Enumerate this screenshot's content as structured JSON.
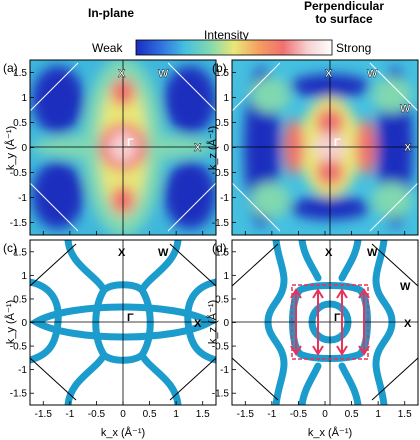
{
  "header": {
    "left_title": "In-plane",
    "right_title_line1": "Perpendicular",
    "right_title_line2": "to surface"
  },
  "colorbar": {
    "title": "Intensity",
    "min_label": "Weak",
    "max_label": "Strong",
    "stops": [
      "#1a2dbe",
      "#2f6fe0",
      "#45c0e0",
      "#80d8b0",
      "#e8e878",
      "#f5a060",
      "#f07070",
      "#f6d0d0",
      "#ffffff"
    ]
  },
  "panels": {
    "a": {
      "tag": "(a)",
      "ylabel": "k_y (Å⁻¹)"
    },
    "b": {
      "tag": "(b)",
      "ylabel": "k_z (Å⁻¹)"
    },
    "c": {
      "tag": "(c)",
      "ylabel": "k_y (Å⁻¹)"
    },
    "d": {
      "tag": "(d)",
      "ylabel": "k_z (Å⁻¹)"
    }
  },
  "symmetry_labels": {
    "gamma": "Γ",
    "x": "X",
    "w": "W"
  },
  "axes": {
    "xlabel": "k_x (Å⁻¹)",
    "ticks": [
      "-1.5",
      "-1",
      "-0.5",
      "0",
      "0.5",
      "1",
      "1.5"
    ],
    "tick_values": [
      -1.5,
      -1,
      -0.5,
      0,
      0.5,
      1,
      1.5
    ],
    "range": [
      -1.75,
      1.75
    ]
  },
  "colors": {
    "fermi_surface": "#1b9ccc",
    "arrow": "#e8325a",
    "guide": "#000000"
  }
}
